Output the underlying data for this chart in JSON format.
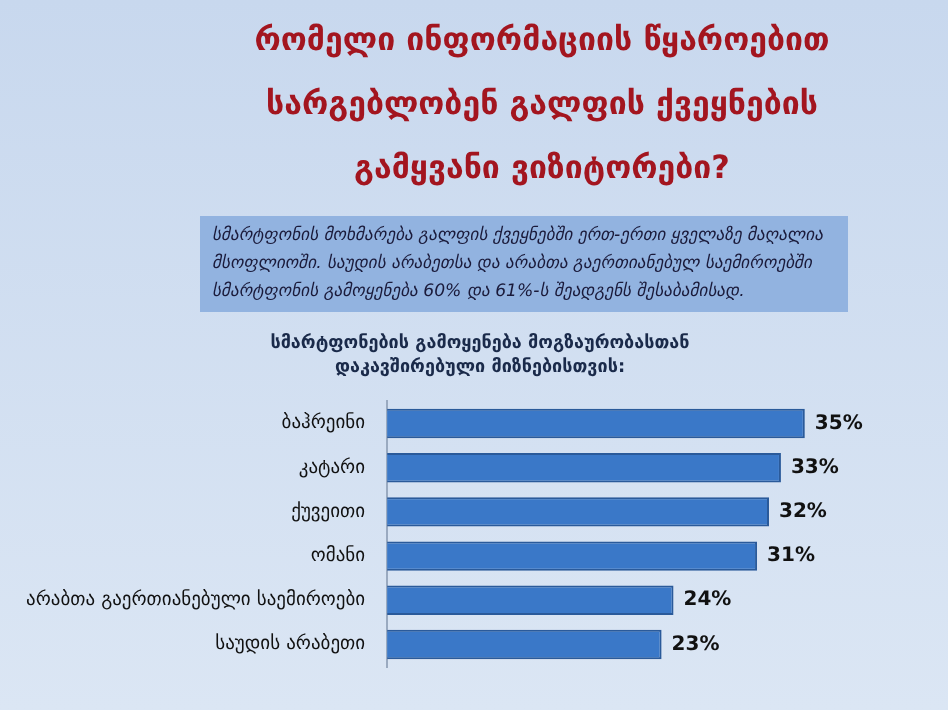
{
  "chart_data": {
    "type": "bar",
    "orientation": "horizontal",
    "title": "რომელი ინფორმაციის წყაროებით სარგებლობენ გალფის ქვეყნების გამყვანი ვიზიტორები?",
    "subtitle": "სმარტფონის მოხმარება გალფის ქვეყნებში ერთ-ერთი ყველაზე მაღალია მსოფლიოში. საუდის არაბეთსა და არაბთა გაერთიანებულ საემიროებში სმარტფონის გამოყენება 60% და 61%-ს შეადგენს შესაბამისად.",
    "annotations": [
      "სმარტფონების გამოყენება მოგზაურობასთან დაკავშირებული მიზნებისთვის:"
    ],
    "categories": [
      "ბაჰრეინი",
      "კატარი",
      "ქუვეითი",
      "ომანი",
      "არაბთა გაერთიანებული საემიროები",
      "საუდის არაბეთი"
    ],
    "values": [
      35,
      33,
      32,
      31,
      24,
      23
    ],
    "value_labels": [
      "35%",
      "33%",
      "32%",
      "31%",
      "24%",
      "23%"
    ],
    "color": "#3a78c8",
    "legend": false
  }
}
